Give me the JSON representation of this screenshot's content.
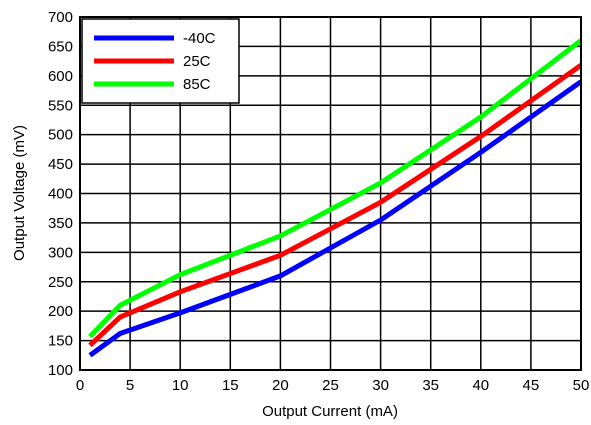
{
  "chart_data": {
    "type": "line",
    "title": "",
    "xlabel": "Output Current (mA)",
    "ylabel": "Output Voltage (mV)",
    "xlim": [
      0,
      50
    ],
    "ylim": [
      100,
      700
    ],
    "xticks": [
      0,
      5,
      10,
      15,
      20,
      25,
      30,
      35,
      40,
      45,
      50
    ],
    "yticks": [
      100,
      150,
      200,
      250,
      300,
      350,
      400,
      450,
      500,
      550,
      600,
      650,
      700
    ],
    "grid": true,
    "legend_position": "top-left",
    "series": [
      {
        "name": "-40C",
        "color": "#0000ff",
        "x": [
          1,
          4,
          10,
          20,
          30,
          40,
          50
        ],
        "y": [
          125,
          162,
          197,
          260,
          355,
          470,
          590
        ]
      },
      {
        "name": "25C",
        "color": "#ff0000",
        "x": [
          1,
          4,
          10,
          20,
          30,
          40,
          50
        ],
        "y": [
          142,
          190,
          233,
          295,
          385,
          497,
          618
        ]
      },
      {
        "name": "85C",
        "color": "#00ff00",
        "x": [
          1,
          4,
          10,
          20,
          30,
          40,
          50
        ],
        "y": [
          157,
          210,
          262,
          328,
          418,
          530,
          660
        ]
      }
    ]
  }
}
